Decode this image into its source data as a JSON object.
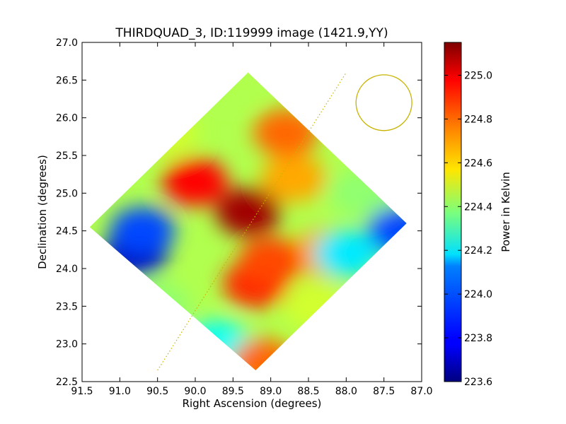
{
  "chart_data": {
    "type": "heatmap",
    "title": "THIRDQUAD_3, ID:119999 image (1421.9,YY)",
    "xlabel": "Right Ascension (degrees)",
    "ylabel": "Declination (degrees)",
    "xlim": [
      91.5,
      87.0
    ],
    "ylim": [
      22.5,
      27.0
    ],
    "x_ticks": [
      "91.5",
      "91.0",
      "90.5",
      "90.0",
      "89.5",
      "89.0",
      "88.5",
      "88.0",
      "87.5",
      "87.0"
    ],
    "y_ticks": [
      "22.5",
      "23.0",
      "23.5",
      "24.0",
      "24.5",
      "25.0",
      "25.5",
      "26.0",
      "26.5",
      "27.0"
    ],
    "colorbar": {
      "label": "Power in Kelvin",
      "range": [
        223.6,
        225.15
      ],
      "ticks": [
        "223.6",
        "223.8",
        "224.0",
        "224.2",
        "224.4",
        "224.6",
        "224.8",
        "225.0"
      ],
      "colormap": "jet"
    },
    "grid": false,
    "map_region": {
      "shape": "diamond",
      "corners_ra_dec": [
        [
          89.3,
          26.6
        ],
        [
          87.2,
          24.6
        ],
        [
          89.2,
          22.65
        ],
        [
          91.4,
          24.55
        ]
      ]
    },
    "features": [
      {
        "ra": 90.8,
        "dec": 24.2,
        "value": 223.7
      },
      {
        "ra": 90.7,
        "dec": 24.5,
        "value": 223.9
      },
      {
        "ra": 89.5,
        "dec": 26.5,
        "value": 224.45
      },
      {
        "ra": 88.3,
        "dec": 24.2,
        "value": 224.7
      },
      {
        "ra": 87.8,
        "dec": 25.0,
        "value": 224.4
      },
      {
        "ra": 87.3,
        "dec": 24.5,
        "value": 223.9
      },
      {
        "ra": 89.2,
        "dec": 23.8,
        "value": 224.9
      },
      {
        "ra": 89.0,
        "dec": 24.1,
        "value": 224.85
      },
      {
        "ra": 89.3,
        "dec": 24.75,
        "value": 225.1
      },
      {
        "ra": 90.0,
        "dec": 25.15,
        "value": 224.95
      },
      {
        "ra": 88.7,
        "dec": 25.2,
        "value": 224.7
      },
      {
        "ra": 88.8,
        "dec": 25.8,
        "value": 224.8
      },
      {
        "ra": 89.7,
        "dec": 23.0,
        "value": 224.2
      },
      {
        "ra": 89.1,
        "dec": 22.75,
        "value": 224.8
      },
      {
        "ra": 88.4,
        "dec": 23.5,
        "value": 224.5
      },
      {
        "ra": 90.5,
        "dec": 23.5,
        "value": 224.4
      },
      {
        "ra": 88.0,
        "dec": 24.2,
        "value": 224.15
      },
      {
        "ra": 90.4,
        "dec": 25.8,
        "value": 224.5
      }
    ],
    "background_value": 224.45,
    "annotations": [
      {
        "type": "dotted-line",
        "from_ra_dec": [
          90.5,
          22.65
        ],
        "to_ra_dec": [
          88.0,
          26.6
        ],
        "color": "#c8b400"
      },
      {
        "type": "circle",
        "center_ra_dec": [
          87.5,
          26.2
        ],
        "radius_deg": 0.37,
        "color": "#c8b400"
      }
    ]
  }
}
